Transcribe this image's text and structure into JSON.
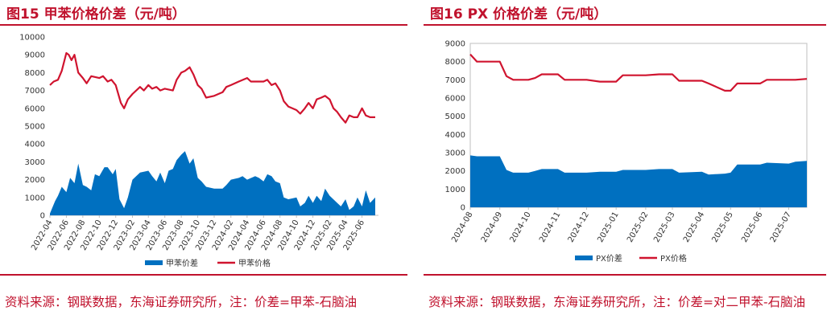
{
  "colors": {
    "accent": "#c0122d",
    "area": "#0070c0",
    "line": "#d0142f",
    "axis": "#bfbfbf"
  },
  "panels": {
    "left": {
      "title": "图15  甲苯价格价差（元/吨）",
      "source": "资料来源：钢联数据，东海证券研究所，注：价差=甲苯-石脑油"
    },
    "right": {
      "title": "图16  PX 价格价差（元/吨）",
      "source": "资料来源：钢联数据，东海证券研究所，注：价差=对二甲苯-石脑油"
    }
  },
  "chart_data": [
    {
      "type": "area+line",
      "ylim": [
        0,
        10000
      ],
      "yticks": [
        "0",
        "1000",
        "2000",
        "3000",
        "4000",
        "5000",
        "6000",
        "7000",
        "8000",
        "9000",
        "10000"
      ],
      "x_range": [
        "2022-04",
        "2025-08"
      ],
      "xticks": [
        "2022-04",
        "2022-06",
        "2022-08",
        "2022-10",
        "2022-12",
        "2023-02",
        "2023-04",
        "2023-06",
        "2023-08",
        "2023-10",
        "2023-12",
        "2024-02",
        "2024-04",
        "2024-06",
        "2024-08",
        "2024-10",
        "2024-12",
        "2025-02",
        "2025-04",
        "2025-06"
      ],
      "legend_position": "bottom",
      "series": [
        {
          "name": "甲苯价差",
          "kind": "area",
          "x": [
            "2022-04",
            "2022-04-20",
            "2022-05",
            "2022-05-15",
            "2022-06",
            "2022-06-15",
            "2022-07",
            "2022-07-15",
            "2022-08",
            "2022-08-15",
            "2022-09",
            "2022-09-15",
            "2022-10",
            "2022-10-20",
            "2022-11",
            "2022-11-20",
            "2022-12",
            "2022-12-15",
            "2023-01",
            "2023-01-15",
            "2023-02",
            "2023-03",
            "2023-04",
            "2023-04-15",
            "2023-05",
            "2023-05-15",
            "2023-06",
            "2023-06-15",
            "2023-07",
            "2023-07-15",
            "2023-08",
            "2023-08-15",
            "2023-09",
            "2023-09-15",
            "2023-10",
            "2023-10-15",
            "2023-11",
            "2023-12",
            "2024-01",
            "2024-01-15",
            "2024-02",
            "2024-03",
            "2024-03-15",
            "2024-04",
            "2024-05",
            "2024-05-15",
            "2024-06",
            "2024-06-15",
            "2024-07",
            "2024-07-15",
            "2024-08",
            "2024-08-15",
            "2024-09",
            "2024-10",
            "2024-10-15",
            "2024-11",
            "2024-11-15",
            "2024-12",
            "2024-12-15",
            "2025-01",
            "2025-01-15",
            "2025-02",
            "2025-03",
            "2025-03-15",
            "2025-04",
            "2025-04-15",
            "2025-05",
            "2025-05-15",
            "2025-06",
            "2025-06-15",
            "2025-07",
            "2025-07-20"
          ],
          "y": [
            100,
            800,
            1100,
            1600,
            1300,
            2100,
            1800,
            2900,
            1700,
            1600,
            1400,
            2300,
            2200,
            2700,
            2700,
            2300,
            2600,
            900,
            400,
            1000,
            2000,
            2400,
            2500,
            2200,
            1900,
            2400,
            1800,
            2500,
            2600,
            3100,
            3400,
            3600,
            2900,
            3200,
            2100,
            1900,
            1600,
            1500,
            1500,
            1700,
            2000,
            2100,
            2200,
            2000,
            2200,
            2100,
            1900,
            2300,
            2200,
            1900,
            1800,
            1000,
            900,
            1000,
            500,
            700,
            1100,
            700,
            1100,
            800,
            1500,
            1100,
            700,
            500,
            900,
            300,
            500,
            1000,
            500,
            1400,
            700,
            1000
          ]
        },
        {
          "name": "甲苯价格",
          "kind": "line",
          "x": [
            "2022-04",
            "2022-04-15",
            "2022-05",
            "2022-05-15",
            "2022-06",
            "2022-06-10",
            "2022-06-20",
            "2022-07",
            "2022-07-15",
            "2022-08",
            "2022-08-15",
            "2022-09",
            "2022-10",
            "2022-10-15",
            "2022-11",
            "2022-11-15",
            "2022-12",
            "2022-12-20",
            "2023-01",
            "2023-01-15",
            "2023-02",
            "2023-03",
            "2023-03-15",
            "2023-04",
            "2023-04-15",
            "2023-05",
            "2023-05-15",
            "2023-06",
            "2023-07",
            "2023-07-15",
            "2023-08",
            "2023-08-15",
            "2023-09",
            "2023-09-15",
            "2023-10",
            "2023-10-15",
            "2023-11",
            "2023-12",
            "2024-01",
            "2024-01-15",
            "2024-02",
            "2024-03",
            "2024-04",
            "2024-04-15",
            "2024-05",
            "2024-06",
            "2024-06-15",
            "2024-07",
            "2024-07-15",
            "2024-08",
            "2024-08-15",
            "2024-09",
            "2024-10",
            "2024-10-15",
            "2024-11",
            "2024-11-15",
            "2024-12",
            "2024-12-15",
            "2025-01",
            "2025-01-15",
            "2025-02",
            "2025-02-15",
            "2025-03",
            "2025-03-15",
            "2025-04",
            "2025-04-15",
            "2025-05",
            "2025-05-15",
            "2025-06",
            "2025-06-15",
            "2025-07",
            "2025-07-20"
          ],
          "y": [
            7300,
            7500,
            7600,
            8100,
            9100,
            9000,
            8700,
            9000,
            8000,
            7700,
            7400,
            7800,
            7700,
            7800,
            7500,
            7600,
            7300,
            6300,
            6000,
            6500,
            6800,
            7200,
            7000,
            7300,
            7100,
            7200,
            7000,
            7100,
            7000,
            7600,
            8000,
            8100,
            8300,
            7900,
            7300,
            7100,
            6600,
            6700,
            6900,
            7200,
            7300,
            7500,
            7700,
            7500,
            7500,
            7500,
            7600,
            7300,
            7400,
            7000,
            6400,
            6100,
            5900,
            5700,
            6000,
            6300,
            6000,
            6500,
            6600,
            6700,
            6500,
            6000,
            5800,
            5500,
            5200,
            5600,
            5500,
            5500,
            6000,
            5600,
            5500,
            5500
          ]
        }
      ]
    },
    {
      "type": "area+line",
      "ylim": [
        0,
        9000
      ],
      "yticks": [
        "0",
        "1000",
        "2000",
        "3000",
        "4000",
        "5000",
        "6000",
        "7000",
        "8000",
        "9000"
      ],
      "x_range": [
        "2024-08",
        "2025-07-20"
      ],
      "xticks": [
        "2024-08",
        "2024-09",
        "2024-10",
        "2024-11",
        "2024-12",
        "2025-01",
        "2025-02",
        "2025-03",
        "2025-04",
        "2025-05",
        "2025-06",
        "2025-07"
      ],
      "legend_position": "bottom",
      "series": [
        {
          "name": "PX价差",
          "kind": "area",
          "x": [
            "2024-08",
            "2024-08-08",
            "2024-08-15",
            "2024-09",
            "2024-09-08",
            "2024-09-15",
            "2024-10",
            "2024-10-08",
            "2024-10-15",
            "2024-11",
            "2024-11-08",
            "2024-12",
            "2024-12-15",
            "2025-01",
            "2025-01-08",
            "2025-02",
            "2025-02-15",
            "2025-03",
            "2025-03-08",
            "2025-04",
            "2025-04-08",
            "2025-04-25",
            "2025-05",
            "2025-05-08",
            "2025-06",
            "2025-06-08",
            "2025-07",
            "2025-07-08",
            "2025-07-20"
          ],
          "y": [
            2850,
            2800,
            2800,
            2800,
            2050,
            1900,
            1900,
            2000,
            2100,
            2100,
            1900,
            1900,
            1950,
            1950,
            2050,
            2050,
            2100,
            2100,
            1900,
            1950,
            1800,
            1850,
            1900,
            2350,
            2350,
            2450,
            2400,
            2500,
            2550
          ]
        },
        {
          "name": "PX价格",
          "kind": "line",
          "x": [
            "2024-08",
            "2024-08-08",
            "2024-08-15",
            "2024-09",
            "2024-09-08",
            "2024-09-15",
            "2024-10",
            "2024-10-08",
            "2024-10-15",
            "2024-11",
            "2024-11-08",
            "2024-12",
            "2024-12-15",
            "2025-01",
            "2025-01-08",
            "2025-02",
            "2025-02-15",
            "2025-03",
            "2025-03-08",
            "2025-04",
            "2025-04-08",
            "2025-04-25",
            "2025-05",
            "2025-05-08",
            "2025-06",
            "2025-06-08",
            "2025-07",
            "2025-07-08",
            "2025-07-20"
          ],
          "y": [
            8400,
            8000,
            8000,
            8000,
            7200,
            7000,
            7000,
            7100,
            7300,
            7300,
            7000,
            7000,
            6900,
            6900,
            7250,
            7250,
            7300,
            7300,
            6950,
            6950,
            6800,
            6400,
            6400,
            6800,
            6800,
            7000,
            7000,
            7000,
            7050
          ]
        }
      ]
    }
  ]
}
